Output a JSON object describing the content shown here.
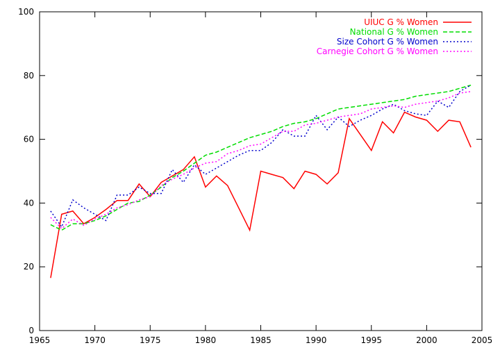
{
  "chart_data": {
    "type": "line",
    "title": "",
    "xlabel": "",
    "ylabel": "",
    "xlim": [
      1965,
      2005
    ],
    "ylim": [
      0,
      100
    ],
    "x_ticks": [
      1965,
      1970,
      1975,
      1980,
      1985,
      1990,
      1995,
      2000,
      2005
    ],
    "y_ticks": [
      0,
      20,
      40,
      60,
      80,
      100
    ],
    "grid": false,
    "legend_position": "top-right",
    "x": [
      1966,
      1967,
      1968,
      1969,
      1970,
      1971,
      1972,
      1973,
      1974,
      1975,
      1976,
      1977,
      1978,
      1979,
      1980,
      1981,
      1982,
      1983,
      1984,
      1985,
      1986,
      1987,
      1988,
      1989,
      1990,
      1991,
      1992,
      1993,
      1994,
      1995,
      1996,
      1997,
      1998,
      1999,
      2000,
      2001,
      2002,
      2003,
      2004
    ],
    "series": [
      {
        "name": "UIUC G % Women",
        "color": "#ff0000",
        "dash": "solid",
        "values": [
          16.5,
          36.5,
          37.5,
          33.5,
          35.5,
          38,
          40.8,
          40.8,
          46,
          42,
          46.5,
          48.5,
          50.5,
          54.5,
          45,
          48.5,
          45.5,
          38.5,
          31.5,
          50,
          49,
          48,
          44.5,
          50,
          49,
          46,
          49.5,
          66.5,
          61.5,
          56.5,
          65.5,
          62,
          68.5,
          67,
          66,
          62.5,
          66,
          65.5,
          57.5
        ]
      },
      {
        "name": "National G % Women",
        "color": "#00dd00",
        "dash": "dashed",
        "values": [
          33.2,
          31.5,
          33.5,
          33.5,
          34.5,
          36,
          38,
          40,
          40.5,
          42.5,
          45,
          48,
          50,
          52.5,
          55,
          56,
          57.5,
          59,
          60.5,
          61.5,
          62.5,
          64,
          65,
          65.5,
          66.5,
          68,
          69.5,
          70,
          70.5,
          71,
          71.5,
          72,
          72.5,
          73.5,
          74,
          74.5,
          75,
          76,
          77
        ]
      },
      {
        "name": "Size Cohort G % Women",
        "color": "#0000cc",
        "dash": "dotted",
        "values": [
          37.5,
          32.5,
          41,
          38.5,
          36.5,
          34.5,
          42.5,
          42.5,
          45,
          43,
          43,
          50.5,
          46.5,
          52,
          49,
          51,
          53,
          55,
          56.5,
          56.5,
          59,
          63,
          61,
          61,
          67.5,
          63,
          67,
          64,
          66,
          67.5,
          69.5,
          71,
          69,
          68,
          67.5,
          72,
          70,
          75,
          77
        ]
      },
      {
        "name": "Carnegie Cohort G % Women",
        "color": "#ff00ff",
        "dash": "dotted",
        "values": [
          35.5,
          32,
          35,
          33,
          35,
          36.5,
          38.5,
          39.5,
          41,
          42,
          45.5,
          47.5,
          49,
          51,
          52.5,
          53,
          55.5,
          56.5,
          58,
          58.5,
          60.5,
          62.5,
          62.5,
          64.5,
          65,
          66,
          67,
          67.5,
          68,
          69.5,
          70,
          70.5,
          70,
          71,
          71.5,
          72,
          73,
          74.5,
          75
        ]
      }
    ]
  }
}
